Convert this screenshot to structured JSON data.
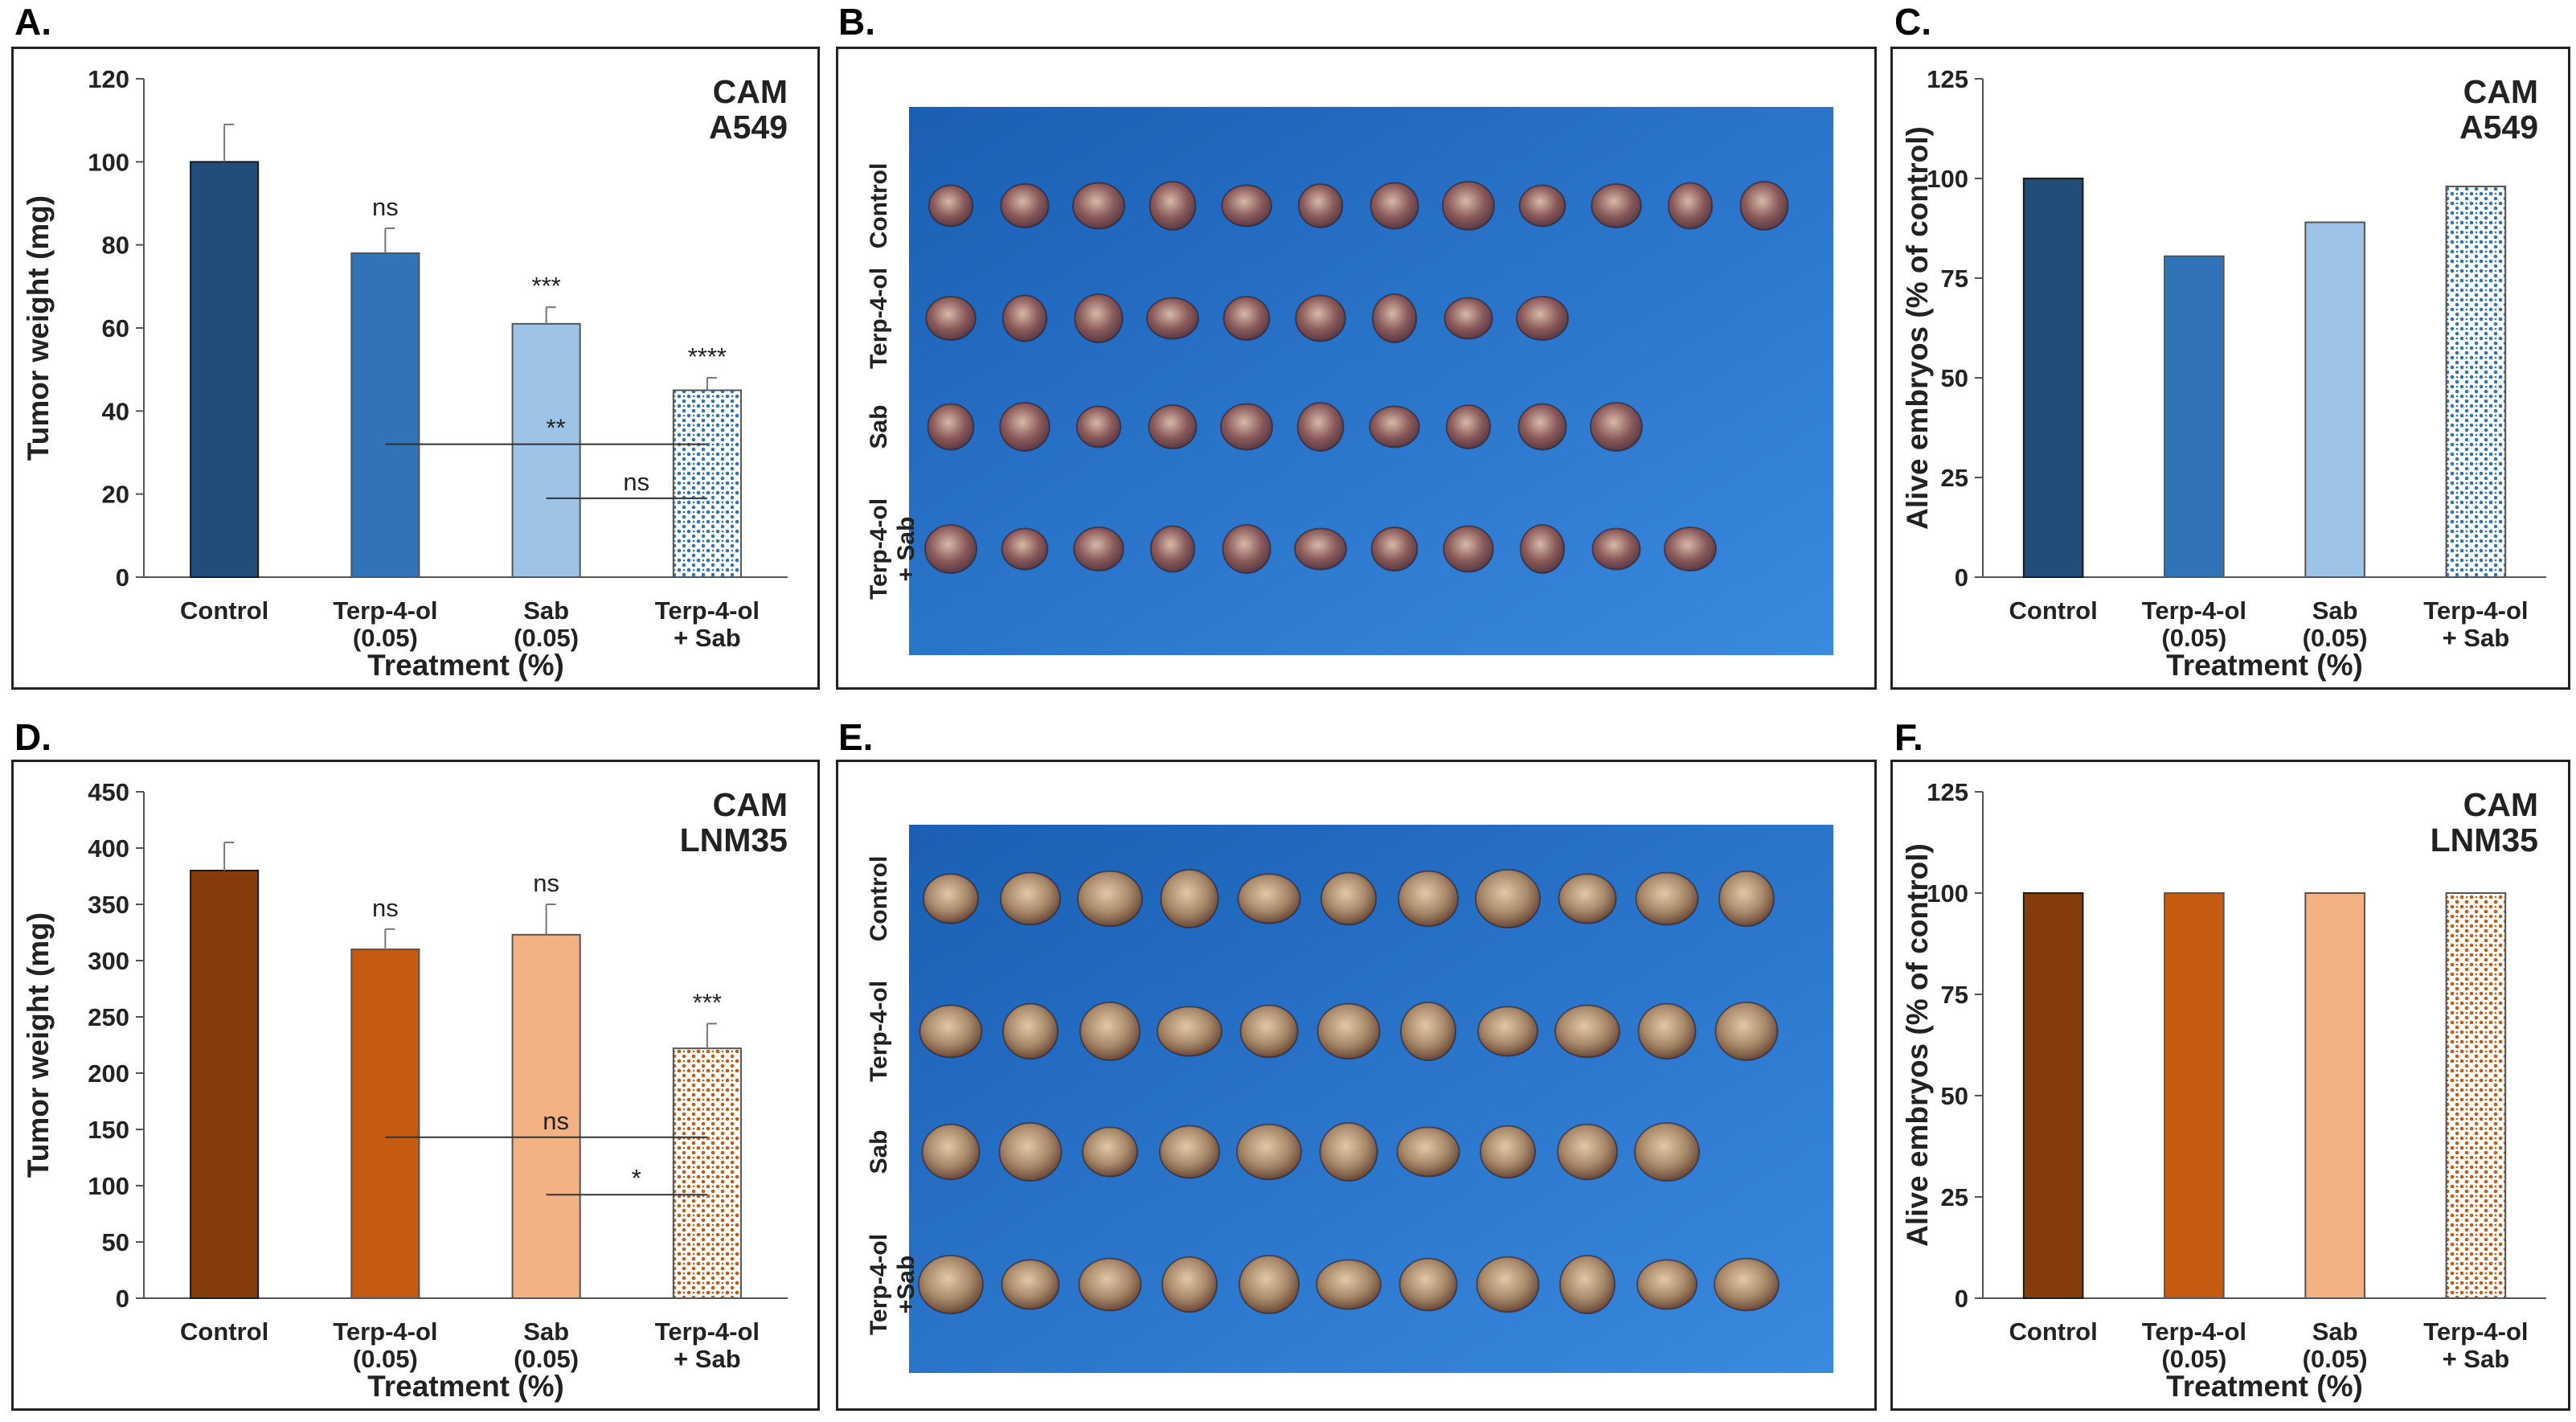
{
  "panels": {
    "A": "A.",
    "B": "B.",
    "C": "C.",
    "D": "D.",
    "E": "E.",
    "F": "F."
  },
  "colors": {
    "a549": [
      "#214d78",
      "#3074b7",
      "#9dc3e6",
      "#dde8f5"
    ],
    "a549_dots": "#3074b7",
    "lnm35": [
      "#843c0c",
      "#c55a11",
      "#f4b183",
      "#fbe5d6"
    ],
    "lnm35_dots": "#c55a11",
    "photo_bg_top": "#1a5fb4",
    "photo_bg_bottom": "#3a8ae0"
  },
  "photos": {
    "B": {
      "rows": [
        "Control",
        "Terp-4-ol",
        "Sab",
        "Terp-4-ol\n+ Sab"
      ],
      "counts": [
        12,
        9,
        10,
        11
      ]
    },
    "E": {
      "rows": [
        "Control",
        "Terp-4-ol",
        "Sab",
        "Terp-4-ol\n+Sab"
      ],
      "counts": [
        11,
        11,
        10,
        11
      ]
    }
  },
  "chart_data": [
    {
      "panel": "A",
      "type": "bar",
      "title": "CAM\nA549",
      "categories": [
        "Control",
        "Terp-4-ol\n(0.05)",
        "Sab\n(0.05)",
        "Terp-4-ol\n+ Sab"
      ],
      "values": [
        100,
        78,
        61,
        45
      ],
      "errors": [
        9,
        6,
        4,
        3
      ],
      "bar_labels": [
        "",
        "ns",
        "***",
        "****"
      ],
      "xlabel": "Treatment (%)",
      "ylabel": "Tumor weight (mg)",
      "ylim": [
        0,
        120
      ],
      "yticks": [
        0,
        20,
        40,
        60,
        80,
        100,
        120
      ],
      "comparisons": [
        {
          "from": 1,
          "to": 3,
          "y": 32,
          "label": "**"
        },
        {
          "from": 2,
          "to": 3,
          "y": 19,
          "label": "ns"
        }
      ],
      "palette": "a549"
    },
    {
      "panel": "C",
      "type": "bar",
      "title": "CAM\nA549",
      "categories": [
        "Control",
        "Terp-4-ol\n(0.05)",
        "Sab\n(0.05)",
        "Terp-4-ol\n+ Sab"
      ],
      "values": [
        100,
        80.5,
        89,
        98
      ],
      "xlabel": "Treatment (%)",
      "ylabel": "Alive embryos (% of control)",
      "ylim": [
        0,
        125
      ],
      "yticks": [
        0,
        25,
        50,
        75,
        100,
        125
      ],
      "palette": "a549"
    },
    {
      "panel": "D",
      "type": "bar",
      "title": "CAM\nLNM35",
      "categories": [
        "Control",
        "Terp-4-ol\n(0.05)",
        "Sab\n(0.05)",
        "Terp-4-ol\n+ Sab"
      ],
      "values": [
        380,
        310,
        323,
        222
      ],
      "errors": [
        25,
        18,
        27,
        22
      ],
      "bar_labels": [
        "",
        "ns",
        "ns",
        "***"
      ],
      "xlabel": "Treatment (%)",
      "ylabel": "Tumor weight (mg)",
      "ylim": [
        0,
        450
      ],
      "yticks": [
        0,
        50,
        100,
        150,
        200,
        250,
        300,
        350,
        400,
        450
      ],
      "comparisons": [
        {
          "from": 1,
          "to": 3,
          "y": 143,
          "label": "ns"
        },
        {
          "from": 2,
          "to": 3,
          "y": 92,
          "label": "*"
        }
      ],
      "palette": "lnm35"
    },
    {
      "panel": "F",
      "type": "bar",
      "title": "CAM\nLNM35",
      "categories": [
        "Control",
        "Terp-4-ol\n(0.05)",
        "Sab\n(0.05)",
        "Terp-4-ol\n+ Sab"
      ],
      "values": [
        100,
        100,
        100,
        100
      ],
      "xlabel": "Treatment (%)",
      "ylabel": "Alive embryos (% of control)",
      "ylim": [
        0,
        125
      ],
      "yticks": [
        0,
        25,
        50,
        75,
        100,
        125
      ],
      "palette": "lnm35"
    }
  ]
}
